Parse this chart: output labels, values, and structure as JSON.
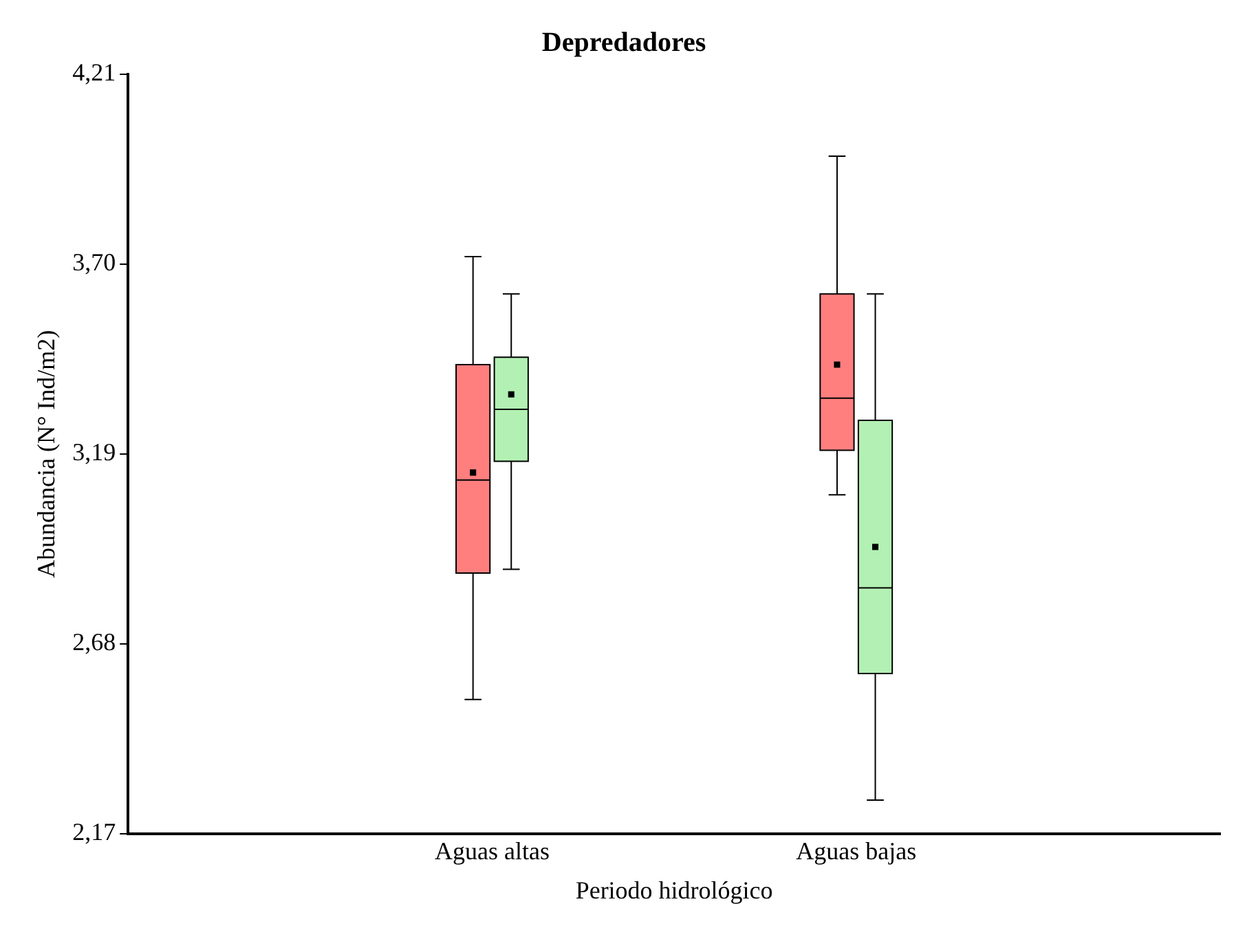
{
  "chart_data": {
    "type": "box",
    "title": "Depredadores",
    "xlabel": "Periodo hidrológico",
    "ylabel": "Abundancia (N° Ind/m2)",
    "categories": [
      "Aguas altas",
      "Aguas bajas"
    ],
    "series": [
      {
        "color": "#ff7f7f",
        "boxes": [
          {
            "low": 2.53,
            "q1": 2.87,
            "median": 3.12,
            "q3": 3.43,
            "high": 3.72,
            "mean": 3.14
          },
          {
            "low": 3.08,
            "q1": 3.2,
            "median": 3.34,
            "q3": 3.62,
            "high": 3.99,
            "mean": 3.43
          }
        ]
      },
      {
        "color": "#b3f0b3",
        "boxes": [
          {
            "low": 2.88,
            "q1": 3.17,
            "median": 3.31,
            "q3": 3.45,
            "high": 3.62,
            "mean": 3.35
          },
          {
            "low": 2.26,
            "q1": 2.6,
            "median": 2.83,
            "q3": 3.28,
            "high": 3.62,
            "mean": 2.94
          }
        ]
      }
    ],
    "ylim": [
      2.17,
      4.21
    ],
    "yticks": [
      {
        "value": 2.17,
        "label": "2,17"
      },
      {
        "value": 2.68,
        "label": "2,68"
      },
      {
        "value": 3.19,
        "label": "3,19"
      },
      {
        "value": 3.7,
        "label": "3,70"
      },
      {
        "value": 4.21,
        "label": "4,21"
      }
    ],
    "grid": false,
    "legend": false,
    "marker": "square"
  }
}
